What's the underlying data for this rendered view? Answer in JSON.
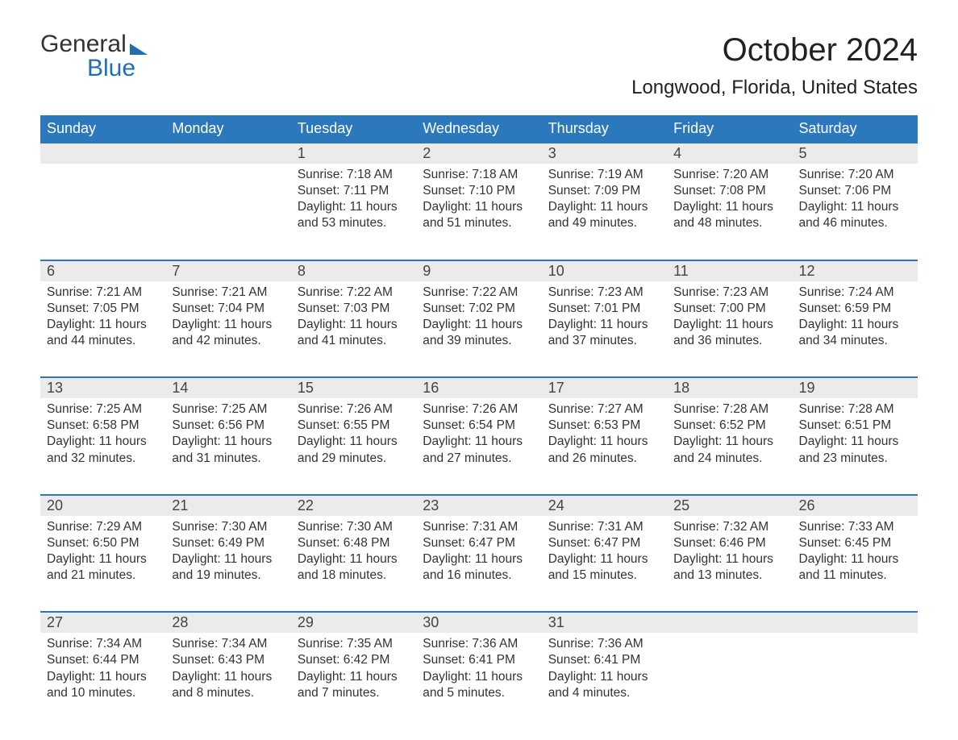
{
  "logo": {
    "line1": "General",
    "line2": "Blue"
  },
  "header": {
    "month_title": "October 2024",
    "location": "Longwood, Florida, United States"
  },
  "colors": {
    "header_bg": "#2b78bd",
    "header_text": "#ffffff",
    "date_row_bg": "#ebebeb",
    "date_row_border": "#2b78bd",
    "body_text": "#333333",
    "logo_blue": "#1f6fb2",
    "page_bg": "#ffffff"
  },
  "typography": {
    "font_family": "Arial",
    "month_title_fontsize": 40,
    "location_fontsize": 24,
    "weekday_fontsize": 18,
    "date_fontsize": 18,
    "cell_fontsize": 15.5
  },
  "weekdays": [
    "Sunday",
    "Monday",
    "Tuesday",
    "Wednesday",
    "Thursday",
    "Friday",
    "Saturday"
  ],
  "weeks": [
    [
      null,
      null,
      {
        "d": "1",
        "sunrise": "7:18 AM",
        "sunset": "7:11 PM",
        "daylight": "11 hours and 53 minutes."
      },
      {
        "d": "2",
        "sunrise": "7:18 AM",
        "sunset": "7:10 PM",
        "daylight": "11 hours and 51 minutes."
      },
      {
        "d": "3",
        "sunrise": "7:19 AM",
        "sunset": "7:09 PM",
        "daylight": "11 hours and 49 minutes."
      },
      {
        "d": "4",
        "sunrise": "7:20 AM",
        "sunset": "7:08 PM",
        "daylight": "11 hours and 48 minutes."
      },
      {
        "d": "5",
        "sunrise": "7:20 AM",
        "sunset": "7:06 PM",
        "daylight": "11 hours and 46 minutes."
      }
    ],
    [
      {
        "d": "6",
        "sunrise": "7:21 AM",
        "sunset": "7:05 PM",
        "daylight": "11 hours and 44 minutes."
      },
      {
        "d": "7",
        "sunrise": "7:21 AM",
        "sunset": "7:04 PM",
        "daylight": "11 hours and 42 minutes."
      },
      {
        "d": "8",
        "sunrise": "7:22 AM",
        "sunset": "7:03 PM",
        "daylight": "11 hours and 41 minutes."
      },
      {
        "d": "9",
        "sunrise": "7:22 AM",
        "sunset": "7:02 PM",
        "daylight": "11 hours and 39 minutes."
      },
      {
        "d": "10",
        "sunrise": "7:23 AM",
        "sunset": "7:01 PM",
        "daylight": "11 hours and 37 minutes."
      },
      {
        "d": "11",
        "sunrise": "7:23 AM",
        "sunset": "7:00 PM",
        "daylight": "11 hours and 36 minutes."
      },
      {
        "d": "12",
        "sunrise": "7:24 AM",
        "sunset": "6:59 PM",
        "daylight": "11 hours and 34 minutes."
      }
    ],
    [
      {
        "d": "13",
        "sunrise": "7:25 AM",
        "sunset": "6:58 PM",
        "daylight": "11 hours and 32 minutes."
      },
      {
        "d": "14",
        "sunrise": "7:25 AM",
        "sunset": "6:56 PM",
        "daylight": "11 hours and 31 minutes."
      },
      {
        "d": "15",
        "sunrise": "7:26 AM",
        "sunset": "6:55 PM",
        "daylight": "11 hours and 29 minutes."
      },
      {
        "d": "16",
        "sunrise": "7:26 AM",
        "sunset": "6:54 PM",
        "daylight": "11 hours and 27 minutes."
      },
      {
        "d": "17",
        "sunrise": "7:27 AM",
        "sunset": "6:53 PM",
        "daylight": "11 hours and 26 minutes."
      },
      {
        "d": "18",
        "sunrise": "7:28 AM",
        "sunset": "6:52 PM",
        "daylight": "11 hours and 24 minutes."
      },
      {
        "d": "19",
        "sunrise": "7:28 AM",
        "sunset": "6:51 PM",
        "daylight": "11 hours and 23 minutes."
      }
    ],
    [
      {
        "d": "20",
        "sunrise": "7:29 AM",
        "sunset": "6:50 PM",
        "daylight": "11 hours and 21 minutes."
      },
      {
        "d": "21",
        "sunrise": "7:30 AM",
        "sunset": "6:49 PM",
        "daylight": "11 hours and 19 minutes."
      },
      {
        "d": "22",
        "sunrise": "7:30 AM",
        "sunset": "6:48 PM",
        "daylight": "11 hours and 18 minutes."
      },
      {
        "d": "23",
        "sunrise": "7:31 AM",
        "sunset": "6:47 PM",
        "daylight": "11 hours and 16 minutes."
      },
      {
        "d": "24",
        "sunrise": "7:31 AM",
        "sunset": "6:47 PM",
        "daylight": "11 hours and 15 minutes."
      },
      {
        "d": "25",
        "sunrise": "7:32 AM",
        "sunset": "6:46 PM",
        "daylight": "11 hours and 13 minutes."
      },
      {
        "d": "26",
        "sunrise": "7:33 AM",
        "sunset": "6:45 PM",
        "daylight": "11 hours and 11 minutes."
      }
    ],
    [
      {
        "d": "27",
        "sunrise": "7:34 AM",
        "sunset": "6:44 PM",
        "daylight": "11 hours and 10 minutes."
      },
      {
        "d": "28",
        "sunrise": "7:34 AM",
        "sunset": "6:43 PM",
        "daylight": "11 hours and 8 minutes."
      },
      {
        "d": "29",
        "sunrise": "7:35 AM",
        "sunset": "6:42 PM",
        "daylight": "11 hours and 7 minutes."
      },
      {
        "d": "30",
        "sunrise": "7:36 AM",
        "sunset": "6:41 PM",
        "daylight": "11 hours and 5 minutes."
      },
      {
        "d": "31",
        "sunrise": "7:36 AM",
        "sunset": "6:41 PM",
        "daylight": "11 hours and 4 minutes."
      },
      null,
      null
    ]
  ],
  "labels": {
    "sunrise": "Sunrise: ",
    "sunset": "Sunset: ",
    "daylight": "Daylight: "
  }
}
